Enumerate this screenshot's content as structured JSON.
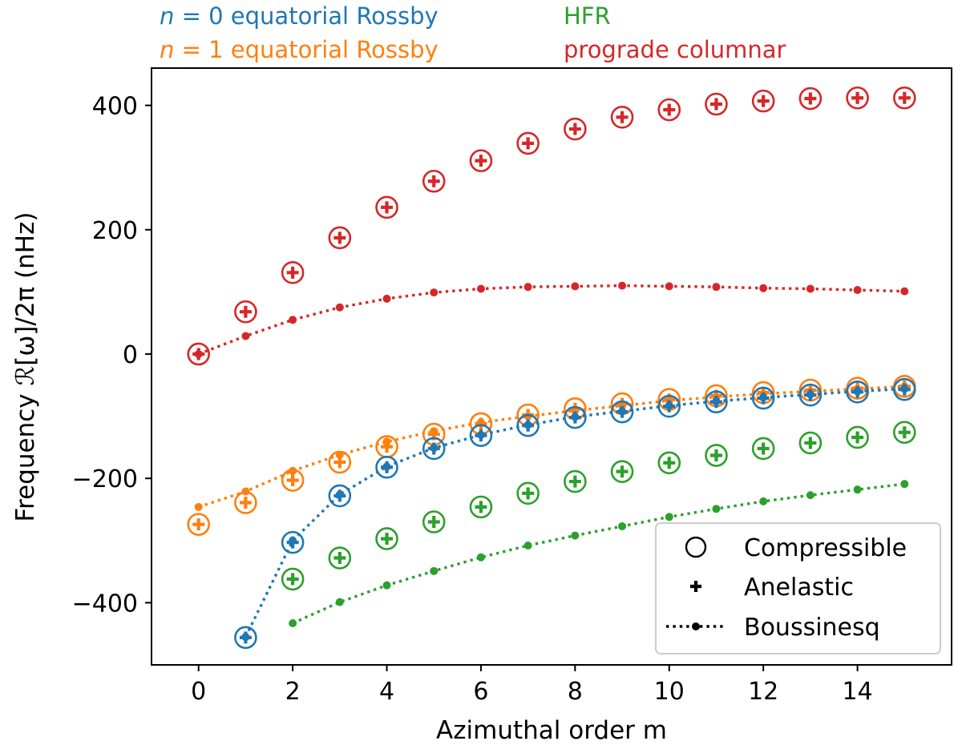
{
  "chart_data": {
    "type": "scatter",
    "xlabel": "Azimuthal order m",
    "ylabel": "Frequency ℛ[ω]/2π (nHz)",
    "xlim": [
      -1,
      16
    ],
    "ylim": [
      -500,
      460
    ],
    "xticks": [
      0,
      2,
      4,
      6,
      8,
      10,
      12,
      14
    ],
    "yticks": [
      -400,
      -200,
      0,
      200,
      400
    ],
    "xtick_labels": [
      "0",
      "2",
      "4",
      "6",
      "8",
      "10",
      "12",
      "14"
    ],
    "ytick_labels": [
      "−400",
      "−200",
      "0",
      "200",
      "400"
    ],
    "series_titles": [
      {
        "key": "n0",
        "math": "n",
        "text": " = 0 equatorial Rossby",
        "color": "#1f77b4"
      },
      {
        "key": "n1",
        "math": "n",
        "text": " = 1 equatorial Rossby",
        "color": "#ff7f0e"
      },
      {
        "key": "hfr",
        "math": "",
        "text": "HFR",
        "color": "#2ca02c"
      },
      {
        "key": "pro",
        "math": "",
        "text": "prograde columnar",
        "color": "#d62728"
      }
    ],
    "legend": {
      "position": "lower-right",
      "entries": [
        {
          "label": "Compressible",
          "marker": "open-circle"
        },
        {
          "label": "Anelastic",
          "marker": "plus"
        },
        {
          "label": "Boussinesq",
          "marker": "dotted-line-dot"
        }
      ]
    },
    "series": [
      {
        "name": "prograde columnar",
        "color": "#d62728",
        "compressible": {
          "x": [
            0,
            1,
            2,
            3,
            4,
            5,
            6,
            7,
            8,
            9,
            10,
            11,
            12,
            13,
            14,
            15
          ],
          "y": [
            0,
            68,
            131,
            187,
            236,
            278,
            311,
            339,
            362,
            381,
            393,
            402,
            407,
            411,
            412,
            412
          ]
        },
        "anelastic": {
          "x": [
            0,
            1,
            2,
            3,
            4,
            5,
            6,
            7,
            8,
            9,
            10,
            11,
            12,
            13,
            14,
            15
          ],
          "y": [
            0,
            68,
            131,
            187,
            236,
            278,
            311,
            339,
            362,
            381,
            393,
            402,
            407,
            411,
            412,
            412
          ]
        },
        "boussinesq": {
          "x": [
            0,
            1,
            2,
            3,
            4,
            5,
            6,
            7,
            8,
            9,
            10,
            11,
            12,
            13,
            14,
            15
          ],
          "y": [
            0,
            29,
            55,
            75,
            89,
            99,
            105,
            108,
            109,
            110,
            109,
            108,
            106,
            105,
            103,
            101
          ]
        }
      },
      {
        "name": "n = 1 equatorial Rossby",
        "color": "#ff7f0e",
        "compressible": {
          "x": [
            0,
            1,
            2,
            3,
            4,
            5,
            6,
            7,
            8,
            9,
            10,
            11,
            12,
            13,
            14,
            15
          ],
          "y": [
            -274,
            -239,
            -203,
            -174,
            -149,
            -129,
            -112,
            -98,
            -88,
            -80,
            -73,
            -67,
            -62,
            -58,
            -55,
            -52
          ]
        },
        "anelastic": {
          "x": [
            0,
            1,
            2,
            3,
            4,
            5,
            6,
            7,
            8,
            9,
            10,
            11,
            12,
            13,
            14,
            15
          ],
          "y": [
            -274,
            -239,
            -203,
            -174,
            -149,
            -129,
            -112,
            -98,
            -88,
            -80,
            -73,
            -67,
            -62,
            -58,
            -55,
            -52
          ]
        },
        "boussinesq": {
          "x": [
            0,
            1,
            2,
            3,
            4,
            5,
            6,
            7,
            8,
            9,
            10,
            11,
            12,
            13,
            14,
            15
          ],
          "y": [
            -246,
            -221,
            -188,
            -162,
            -141,
            -124,
            -110,
            -100,
            -91,
            -83,
            -75,
            -69,
            -64,
            -60,
            -56,
            -52
          ]
        }
      },
      {
        "name": "n = 0 equatorial Rossby",
        "color": "#1f77b4",
        "compressible": {
          "x": [
            1,
            2,
            3,
            4,
            5,
            6,
            7,
            8,
            9,
            10,
            11,
            12,
            13,
            14,
            15
          ],
          "y": [
            -456,
            -303,
            -228,
            -182,
            -152,
            -131,
            -115,
            -102,
            -93,
            -84,
            -77,
            -71,
            -66,
            -61,
            -57
          ]
        },
        "anelastic": {
          "x": [
            1,
            2,
            3,
            4,
            5,
            6,
            7,
            8,
            9,
            10,
            11,
            12,
            13,
            14,
            15
          ],
          "y": [
            -456,
            -303,
            -228,
            -182,
            -152,
            -131,
            -115,
            -102,
            -93,
            -84,
            -77,
            -71,
            -66,
            -61,
            -57
          ]
        },
        "boussinesq": {
          "x": [
            1,
            2,
            3,
            4,
            5,
            6,
            7,
            8,
            9,
            10,
            11,
            12,
            13,
            14,
            15
          ],
          "y": [
            -455,
            -300,
            -226,
            -181,
            -151,
            -130,
            -114,
            -101,
            -92,
            -83,
            -76,
            -70,
            -65,
            -60,
            -56
          ]
        }
      },
      {
        "name": "HFR",
        "color": "#2ca02c",
        "compressible": {
          "x": [
            2,
            3,
            4,
            5,
            6,
            7,
            8,
            9,
            10,
            11,
            12,
            13,
            14,
            15
          ],
          "y": [
            -362,
            -328,
            -297,
            -270,
            -246,
            -224,
            -205,
            -189,
            -175,
            -163,
            -152,
            -143,
            -134,
            -126
          ]
        },
        "anelastic": {
          "x": [
            2,
            3,
            4,
            5,
            6,
            7,
            8,
            9,
            10,
            11,
            12,
            13,
            14,
            15
          ],
          "y": [
            -362,
            -328,
            -297,
            -270,
            -246,
            -224,
            -205,
            -189,
            -175,
            -163,
            -152,
            -143,
            -134,
            -126
          ]
        },
        "boussinesq": {
          "x": [
            2,
            3,
            4,
            5,
            6,
            7,
            8,
            9,
            10,
            11,
            12,
            13,
            14,
            15
          ],
          "y": [
            -433,
            -399,
            -372,
            -349,
            -327,
            -308,
            -292,
            -277,
            -262,
            -249,
            -237,
            -227,
            -218,
            -209
          ]
        }
      }
    ]
  }
}
